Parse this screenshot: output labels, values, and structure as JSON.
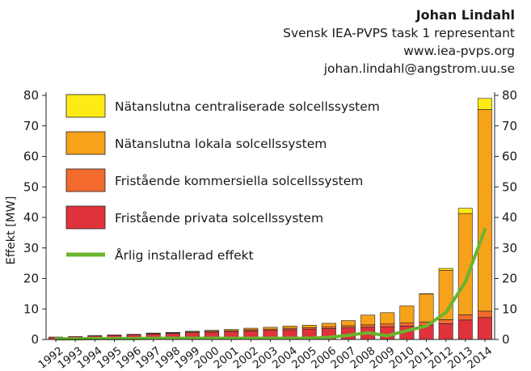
{
  "header": {
    "author": "Johan Lindahl",
    "role": "Svensk IEA-PVPS task 1 representant",
    "website": "www.iea-pvps.org",
    "email": "johan.lindahl@angstrom.uu.se"
  },
  "chart_data": {
    "type": "bar",
    "stacked": true,
    "categories": [
      "1992",
      "1993",
      "1994",
      "1995",
      "1996",
      "1997",
      "1998",
      "1999",
      "2000",
      "2001",
      "2002",
      "2003",
      "2004",
      "2005",
      "2006",
      "2007",
      "2008",
      "2009",
      "2010",
      "2011",
      "2012",
      "2013",
      "2014"
    ],
    "ylabel": "Effekt [MW]",
    "ylim": [
      0,
      80
    ],
    "yticks": [
      0,
      10,
      20,
      30,
      40,
      50,
      60,
      70,
      80
    ],
    "secondary_y_axis": true,
    "grid": false,
    "legend_placement": "top-left",
    "series": [
      {
        "name": "Fristående privata solcellssystem",
        "color": "#e0323a",
        "values": [
          0.8,
          1.0,
          1.2,
          1.4,
          1.6,
          1.8,
          2.0,
          2.2,
          2.4,
          2.6,
          2.8,
          3.0,
          3.2,
          3.4,
          3.6,
          3.8,
          4.0,
          4.2,
          4.4,
          4.6,
          5.2,
          6.4,
          7.2
        ]
      },
      {
        "name": "Fristående kommersiella solcellssystem",
        "color": "#f26a2e",
        "values": [
          0.0,
          0.0,
          0.1,
          0.1,
          0.1,
          0.2,
          0.2,
          0.3,
          0.3,
          0.3,
          0.4,
          0.4,
          0.5,
          0.5,
          0.6,
          0.7,
          0.8,
          0.9,
          1.0,
          1.1,
          1.3,
          1.7,
          2.1
        ]
      },
      {
        "name": "Nätanslutna lokala solcellssystem",
        "color": "#f7a21b",
        "values": [
          0.0,
          0.0,
          0.0,
          0.0,
          0.0,
          0.1,
          0.1,
          0.2,
          0.3,
          0.4,
          0.5,
          0.6,
          0.7,
          0.8,
          1.1,
          1.7,
          3.2,
          3.7,
          5.6,
          9.2,
          16.2,
          33.2,
          66.1
        ]
      },
      {
        "name": "Nätanslutna centraliserade solcellssystem",
        "color": "#ffeb14",
        "values": [
          0,
          0,
          0,
          0,
          0,
          0,
          0,
          0,
          0,
          0,
          0,
          0,
          0,
          0,
          0,
          0,
          0,
          0,
          0,
          0.1,
          0.6,
          1.7,
          3.6
        ]
      }
    ],
    "line": {
      "name": "Årlig installerad effekt",
      "color": "#6ab42d",
      "values": [
        0.2,
        0.2,
        0.3,
        0.3,
        0.3,
        0.4,
        0.4,
        0.4,
        0.4,
        0.4,
        0.4,
        0.4,
        0.4,
        0.4,
        0.7,
        1.4,
        2.2,
        1.2,
        2.9,
        4.4,
        8.8,
        18.9,
        36.0
      ]
    }
  }
}
